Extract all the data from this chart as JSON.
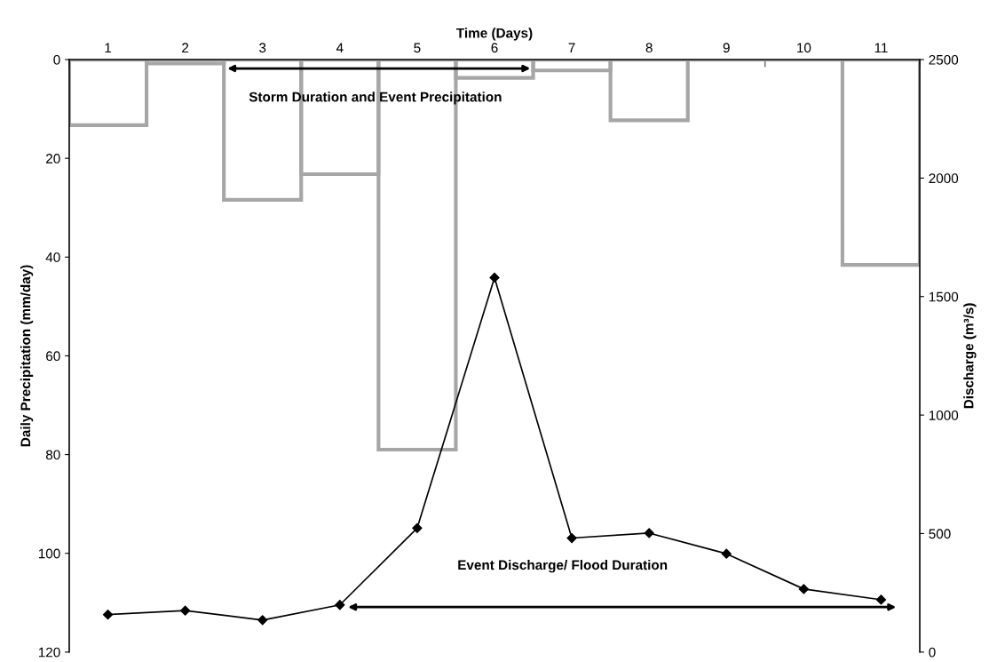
{
  "chart_data": {
    "type": "bar",
    "xlabel": "Time (Days)",
    "ylabel": "Daily Precipitation (mm/day)",
    "y2label": "Discharge (m³/s)",
    "categories": [
      "1",
      "2",
      "3",
      "4",
      "5",
      "6",
      "7",
      "8",
      "9",
      "10",
      "11"
    ],
    "series": [
      {
        "color": "#a6a6a6",
        "values": [
          13.3,
          0.8,
          28.4,
          23.2,
          79,
          3.7,
          2.2,
          12.3,
          0,
          0,
          41.6
        ]
      },
      {
        "type": "line",
        "axis": "y2",
        "color": "#000000",
        "marker": "diamond",
        "values": [
          158,
          175,
          135,
          199,
          523,
          1580,
          481,
          502,
          415,
          266,
          221
        ]
      }
    ],
    "ylim": [
      120,
      0
    ],
    "yticks": [
      0,
      20,
      40,
      60,
      80,
      100,
      120
    ],
    "y2lim": [
      0,
      2500
    ],
    "y2ticks": [
      0,
      500,
      1000,
      1500,
      2000,
      2500
    ],
    "annotations": [
      "Storm Duration and Event Precipitation",
      "Event Discharge/ Flood Duration"
    ],
    "grid": false,
    "legend": false
  }
}
